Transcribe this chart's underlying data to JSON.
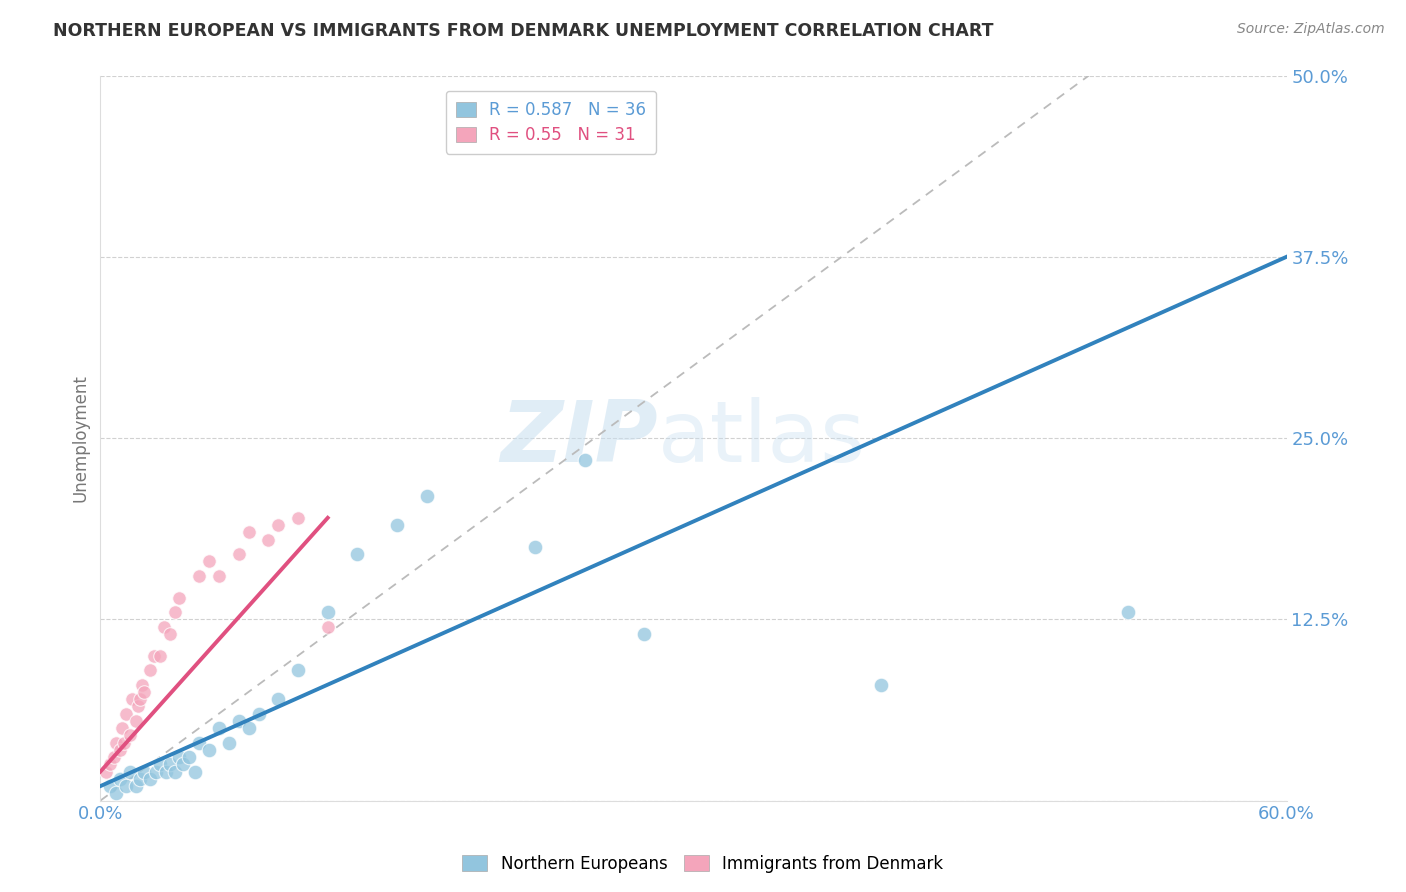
{
  "title": "NORTHERN EUROPEAN VS IMMIGRANTS FROM DENMARK UNEMPLOYMENT CORRELATION CHART",
  "source": "Source: ZipAtlas.com",
  "ylabel": "Unemployment",
  "xlim": [
    0.0,
    0.6
  ],
  "ylim": [
    0.0,
    0.5
  ],
  "xticks": [
    0.0,
    0.12,
    0.24,
    0.36,
    0.48,
    0.6
  ],
  "xtick_labels": [
    "0.0%",
    "",
    "",
    "",
    "",
    "60.0%"
  ],
  "yticks": [
    0.0,
    0.125,
    0.25,
    0.375,
    0.5
  ],
  "ytick_labels": [
    "",
    "12.5%",
    "25.0%",
    "37.5%",
    "50.0%"
  ],
  "blue_color": "#92c5de",
  "pink_color": "#f4a5bb",
  "blue_line_color": "#3182bd",
  "pink_line_color": "#e05080",
  "grid_color": "#cccccc",
  "R_blue": 0.587,
  "N_blue": 36,
  "R_pink": 0.55,
  "N_pink": 31,
  "legend_label_blue": "Northern Europeans",
  "legend_label_pink": "Immigrants from Denmark",
  "watermark_left": "ZIP",
  "watermark_right": "atlas",
  "blue_scatter_x": [
    0.005,
    0.008,
    0.01,
    0.013,
    0.015,
    0.018,
    0.02,
    0.022,
    0.025,
    0.028,
    0.03,
    0.033,
    0.035,
    0.038,
    0.04,
    0.042,
    0.045,
    0.048,
    0.05,
    0.055,
    0.06,
    0.065,
    0.07,
    0.075,
    0.08,
    0.09,
    0.1,
    0.115,
    0.13,
    0.15,
    0.165,
    0.22,
    0.245,
    0.275,
    0.395,
    0.52
  ],
  "blue_scatter_y": [
    0.01,
    0.005,
    0.015,
    0.01,
    0.02,
    0.01,
    0.015,
    0.02,
    0.015,
    0.02,
    0.025,
    0.02,
    0.025,
    0.02,
    0.03,
    0.025,
    0.03,
    0.02,
    0.04,
    0.035,
    0.05,
    0.04,
    0.055,
    0.05,
    0.06,
    0.07,
    0.09,
    0.13,
    0.17,
    0.19,
    0.21,
    0.175,
    0.235,
    0.115,
    0.08,
    0.13
  ],
  "pink_scatter_x": [
    0.003,
    0.005,
    0.007,
    0.008,
    0.01,
    0.011,
    0.012,
    0.013,
    0.015,
    0.016,
    0.018,
    0.019,
    0.02,
    0.021,
    0.022,
    0.025,
    0.027,
    0.03,
    0.032,
    0.035,
    0.038,
    0.04,
    0.05,
    0.055,
    0.06,
    0.07,
    0.075,
    0.085,
    0.09,
    0.1,
    0.115
  ],
  "pink_scatter_y": [
    0.02,
    0.025,
    0.03,
    0.04,
    0.035,
    0.05,
    0.04,
    0.06,
    0.045,
    0.07,
    0.055,
    0.065,
    0.07,
    0.08,
    0.075,
    0.09,
    0.1,
    0.1,
    0.12,
    0.115,
    0.13,
    0.14,
    0.155,
    0.165,
    0.155,
    0.17,
    0.185,
    0.18,
    0.19,
    0.195,
    0.12
  ],
  "blue_line_x0": 0.0,
  "blue_line_y0": 0.01,
  "blue_line_x1": 0.6,
  "blue_line_y1": 0.375,
  "pink_line_x0": 0.0,
  "pink_line_y0": 0.02,
  "pink_line_x1": 0.115,
  "pink_line_y1": 0.195,
  "dash_line_x0": 0.0,
  "dash_line_y0": 0.0,
  "dash_line_x1": 0.5,
  "dash_line_y1": 0.5
}
